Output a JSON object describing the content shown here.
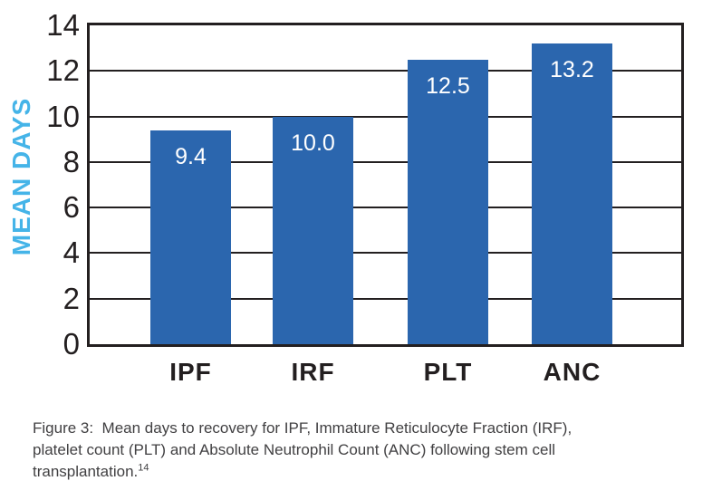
{
  "chart_data": {
    "type": "bar",
    "categories": [
      "IPF",
      "IRF",
      "PLT",
      "ANC"
    ],
    "values": [
      9.4,
      10.0,
      12.5,
      13.2
    ],
    "bar_labels": [
      "9.4",
      "10.0",
      "12.5",
      "13.2"
    ],
    "title": "",
    "xlabel": "",
    "ylabel": "MEAN DAYS",
    "ylim": [
      0,
      14
    ],
    "yticks": [
      0,
      2,
      4,
      6,
      8,
      10,
      12,
      14
    ],
    "grid": "horizontal-only",
    "legend": "none",
    "colors": {
      "bar": "#2b66ae",
      "bar_value_text": "#ffffff",
      "axis_and_grid": "#231f20",
      "tick_text": "#231f20",
      "ylabel_text": "#45b4e8",
      "caption_text": "#414042",
      "background": "#ffffff"
    }
  },
  "caption": {
    "line1": "Figure 3:  Mean days to recovery for IPF, Immature Reticulocyte Fraction (IRF),",
    "line2": "platelet count (PLT) and Absolute Neutrophil Count (ANC) following stem cell",
    "line3": "transplantation.",
    "footnote_ref": "14"
  }
}
